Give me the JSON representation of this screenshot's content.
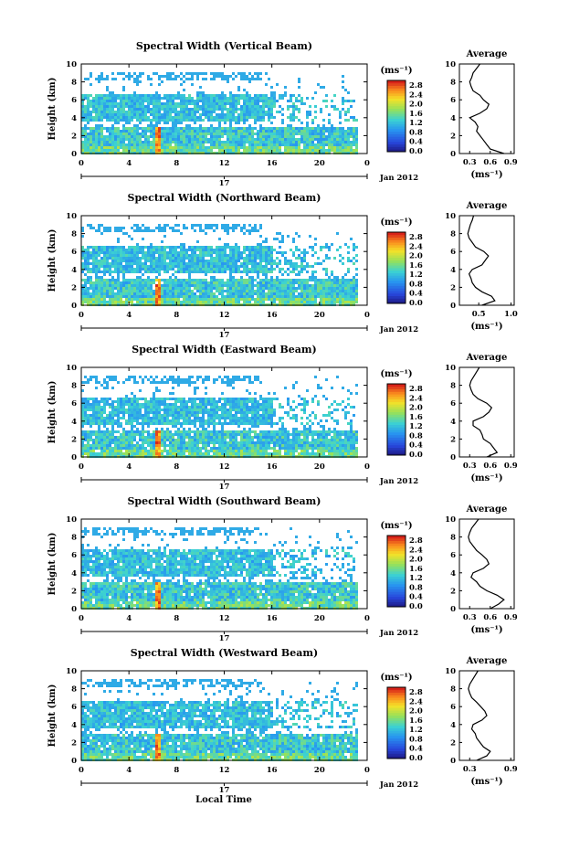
{
  "figure": {
    "xlabel": "Local Time",
    "date_label": "Jan 2012",
    "day_label": "17"
  },
  "chart_data": [
    {
      "type": "heatmap",
      "title": "Spectral Width (Vertical Beam)",
      "ylabel": "Height (km)",
      "xticks": [
        "0",
        "4",
        "8",
        "12",
        "16",
        "20",
        "0"
      ],
      "yticks": [
        "0",
        "2",
        "4",
        "6",
        "8",
        "10"
      ],
      "xlim": [
        0,
        24
      ],
      "ylim": [
        0,
        10
      ],
      "colorbar": {
        "unit": "(ms⁻¹)",
        "ticks": [
          "0.0",
          "0.4",
          "0.8",
          "1.2",
          "1.6",
          "2.0",
          "2.4",
          "2.8"
        ],
        "range": [
          0,
          2.8
        ]
      },
      "average": {
        "title": "Average",
        "xlabel": "(ms⁻¹)",
        "xticks": [
          "0.3",
          "0.6",
          "0.9"
        ],
        "xlim": [
          0.15,
          0.95
        ],
        "yticks": [
          "0",
          "2",
          "4",
          "6",
          "8",
          "10"
        ],
        "heights": [
          0,
          0.5,
          1.0,
          1.5,
          2.0,
          2.5,
          3.0,
          3.5,
          4.0,
          4.5,
          5.0,
          5.5,
          6.0,
          6.5,
          7.0,
          7.5,
          8.0,
          8.5,
          9.0,
          9.5,
          10.0
        ],
        "values": [
          0.8,
          0.6,
          0.55,
          0.5,
          0.45,
          0.4,
          0.42,
          0.38,
          0.3,
          0.45,
          0.55,
          0.58,
          0.5,
          0.45,
          0.35,
          0.32,
          0.3,
          0.33,
          0.35,
          0.4,
          0.45
        ]
      }
    },
    {
      "type": "heatmap",
      "title": "Spectral Width (Northward Beam)",
      "ylabel": "Height (km)",
      "xticks": [
        "0",
        "4",
        "8",
        "12",
        "16",
        "20",
        "0"
      ],
      "yticks": [
        "0",
        "2",
        "4",
        "6",
        "8",
        "10"
      ],
      "xlim": [
        0,
        24
      ],
      "ylim": [
        0,
        10
      ],
      "colorbar": {
        "unit": "(ms⁻¹)",
        "ticks": [
          "0.0",
          "0.4",
          "0.8",
          "1.2",
          "1.6",
          "2.0",
          "2.4",
          "2.8"
        ],
        "range": [
          0,
          2.8
        ]
      },
      "average": {
        "title": "Average",
        "xlabel": "(ms⁻¹)",
        "xticks": [
          "0.5",
          "1.0"
        ],
        "xlim": [
          0.2,
          1.05
        ],
        "yticks": [
          "0",
          "2",
          "4",
          "6",
          "8",
          "10"
        ],
        "heights": [
          0,
          0.5,
          1.0,
          1.5,
          2.0,
          2.5,
          3.0,
          3.5,
          4.0,
          4.5,
          5.0,
          5.5,
          6.0,
          6.5,
          7.0,
          7.5,
          8.0,
          8.5,
          9.0,
          9.5,
          10.0
        ],
        "values": [
          0.55,
          0.75,
          0.7,
          0.55,
          0.45,
          0.4,
          0.38,
          0.35,
          0.4,
          0.55,
          0.6,
          0.65,
          0.58,
          0.45,
          0.4,
          0.35,
          0.33,
          0.35,
          0.37,
          0.4,
          0.42
        ]
      }
    },
    {
      "type": "heatmap",
      "title": "Spectral Width (Eastward Beam)",
      "ylabel": "Height (km)",
      "xticks": [
        "0",
        "4",
        "8",
        "12",
        "16",
        "20",
        "0"
      ],
      "yticks": [
        "0",
        "2",
        "4",
        "6",
        "8",
        "10"
      ],
      "xlim": [
        0,
        24
      ],
      "ylim": [
        0,
        10
      ],
      "colorbar": {
        "unit": "(ms⁻¹)",
        "ticks": [
          "0.0",
          "0.4",
          "0.8",
          "1.2",
          "1.6",
          "2.0",
          "2.4",
          "2.8"
        ],
        "range": [
          0,
          2.8
        ]
      },
      "average": {
        "title": "Average",
        "xlabel": "(ms⁻¹)",
        "xticks": [
          "0.3",
          "0.6",
          "0.9"
        ],
        "xlim": [
          0.15,
          0.95
        ],
        "yticks": [
          "0",
          "2",
          "4",
          "6",
          "8",
          "10"
        ],
        "heights": [
          0,
          0.5,
          1.0,
          1.5,
          2.0,
          2.5,
          3.0,
          3.5,
          4.0,
          4.5,
          5.0,
          5.5,
          6.0,
          6.5,
          7.0,
          7.5,
          8.0,
          8.5,
          9.0,
          9.5,
          10.0
        ],
        "values": [
          0.55,
          0.7,
          0.65,
          0.6,
          0.5,
          0.48,
          0.45,
          0.35,
          0.35,
          0.5,
          0.58,
          0.62,
          0.55,
          0.42,
          0.35,
          0.32,
          0.3,
          0.32,
          0.36,
          0.4,
          0.44
        ]
      }
    },
    {
      "type": "heatmap",
      "title": "Spectral Width (Southward Beam)",
      "ylabel": "Height (km)",
      "xticks": [
        "0",
        "4",
        "8",
        "12",
        "16",
        "20",
        "0"
      ],
      "yticks": [
        "0",
        "2",
        "4",
        "6",
        "8",
        "10"
      ],
      "xlim": [
        0,
        24
      ],
      "ylim": [
        0,
        10
      ],
      "colorbar": {
        "unit": "(ms⁻¹)",
        "ticks": [
          "0.0",
          "0.4",
          "0.8",
          "1.2",
          "1.6",
          "2.0",
          "2.4",
          "2.8"
        ],
        "range": [
          0,
          2.8
        ]
      },
      "average": {
        "title": "Average",
        "xlabel": "(ms⁻¹)",
        "xticks": [
          "0.3",
          "0.6",
          "0.9"
        ],
        "xlim": [
          0.15,
          0.95
        ],
        "yticks": [
          "0",
          "2",
          "4",
          "6",
          "8",
          "10"
        ],
        "heights": [
          0,
          0.5,
          1.0,
          1.5,
          2.0,
          2.5,
          3.0,
          3.5,
          4.0,
          4.5,
          5.0,
          5.5,
          6.0,
          6.5,
          7.0,
          7.5,
          8.0,
          8.5,
          9.0,
          9.5,
          10.0
        ],
        "values": [
          0.6,
          0.72,
          0.8,
          0.7,
          0.55,
          0.45,
          0.4,
          0.32,
          0.35,
          0.5,
          0.58,
          0.55,
          0.48,
          0.4,
          0.35,
          0.3,
          0.28,
          0.3,
          0.33,
          0.38,
          0.43
        ]
      }
    },
    {
      "type": "heatmap",
      "title": "Spectral Width (Westward Beam)",
      "ylabel": "Height (km)",
      "xticks": [
        "0",
        "4",
        "8",
        "12",
        "16",
        "20",
        "0"
      ],
      "yticks": [
        "0",
        "2",
        "4",
        "6",
        "8",
        "10"
      ],
      "xlim": [
        0,
        24
      ],
      "ylim": [
        0,
        10
      ],
      "colorbar": {
        "unit": "(ms⁻¹)",
        "ticks": [
          "0.0",
          "0.4",
          "0.8",
          "1.2",
          "1.6",
          "2.0",
          "2.4",
          "2.8"
        ],
        "range": [
          0,
          2.8
        ]
      },
      "average": {
        "title": "Average",
        "xlabel": "(ms⁻¹)",
        "xticks": [
          "0.3",
          "0.9"
        ],
        "xlim": [
          0.15,
          0.95
        ],
        "yticks": [
          "0",
          "2",
          "4",
          "6",
          "8",
          "10"
        ],
        "heights": [
          0,
          0.5,
          1.0,
          1.5,
          2.0,
          2.5,
          3.0,
          3.5,
          4.0,
          4.5,
          5.0,
          5.5,
          6.0,
          6.5,
          7.0,
          7.5,
          8.0,
          8.5,
          9.0,
          9.5,
          10.0
        ],
        "values": [
          0.4,
          0.55,
          0.6,
          0.5,
          0.45,
          0.4,
          0.38,
          0.33,
          0.35,
          0.48,
          0.55,
          0.52,
          0.46,
          0.4,
          0.33,
          0.3,
          0.28,
          0.3,
          0.34,
          0.38,
          0.42
        ]
      }
    }
  ]
}
